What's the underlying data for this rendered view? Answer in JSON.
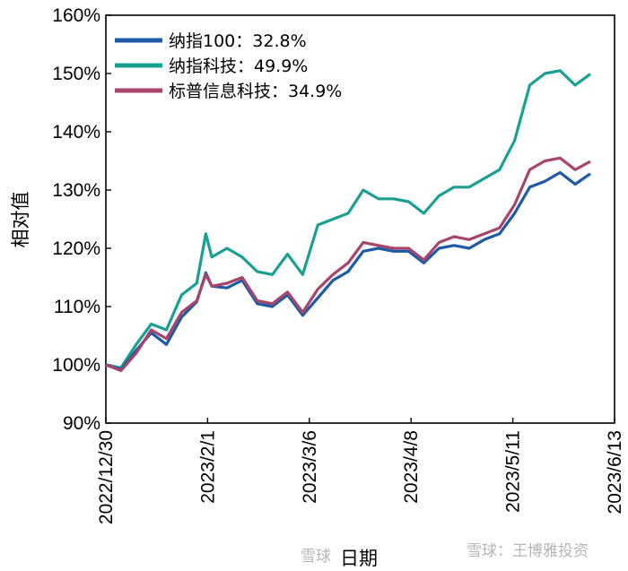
{
  "chart_data": {
    "type": "line",
    "ylabel": "相对值",
    "xlabel": "日期",
    "ylim": [
      90,
      160
    ],
    "y_ticks": [
      "90%",
      "100%",
      "110%",
      "120%",
      "130%",
      "140%",
      "150%",
      "160%"
    ],
    "x_ticks": [
      "2022/12/30",
      "2023/2/1",
      "2023/3/6",
      "2023/4/8",
      "2023/5/11",
      "2023/6/13"
    ],
    "legend_position": "top-left",
    "x_days_index": [
      0,
      5,
      10,
      15,
      20,
      25,
      30,
      33,
      35,
      40,
      45,
      50,
      55,
      60,
      65,
      70,
      75,
      80,
      85,
      90,
      95,
      100,
      105,
      110,
      115,
      120,
      125,
      130,
      135,
      140,
      145,
      150,
      155,
      160
    ],
    "series": [
      {
        "name": "纳指100：32.8%",
        "color": "#1f5aa6",
        "values": [
          100,
          99.2,
          102.5,
          105.5,
          103.5,
          108.2,
          110.8,
          115.8,
          113.5,
          113.2,
          114.5,
          110.5,
          110,
          112,
          108.5,
          111.5,
          114.5,
          116,
          119.5,
          120,
          119.5,
          119.5,
          117.5,
          120,
          120.5,
          120,
          121.5,
          122.5,
          126,
          130.5,
          131.5,
          133,
          131,
          132.8
        ]
      },
      {
        "name": "纳指科技：49.9%",
        "color": "#1aa093",
        "values": [
          100,
          99.5,
          103.5,
          107,
          106,
          112,
          114,
          122.5,
          118.5,
          120,
          118.5,
          116,
          115.5,
          119,
          115.5,
          124,
          125,
          126,
          130,
          128.5,
          128.5,
          128,
          126,
          129,
          130.5,
          130.5,
          132,
          133.5,
          138.5,
          148,
          150,
          150.5,
          148,
          149.9
        ]
      },
      {
        "name": "标普信息科技：34.9%",
        "color": "#a8456a",
        "values": [
          100,
          99,
          102,
          106,
          104.5,
          109,
          111,
          115.5,
          113.5,
          114,
          115,
          111,
          110.5,
          112.5,
          109,
          113,
          115.5,
          117.5,
          121,
          120.5,
          120,
          120,
          118,
          121,
          122,
          121.5,
          122.5,
          123.5,
          127.5,
          133.5,
          135,
          135.5,
          133.5,
          134.9
        ]
      }
    ]
  },
  "watermark": {
    "left_text": "雪球",
    "right_text": "雪球：王博雅投资"
  }
}
